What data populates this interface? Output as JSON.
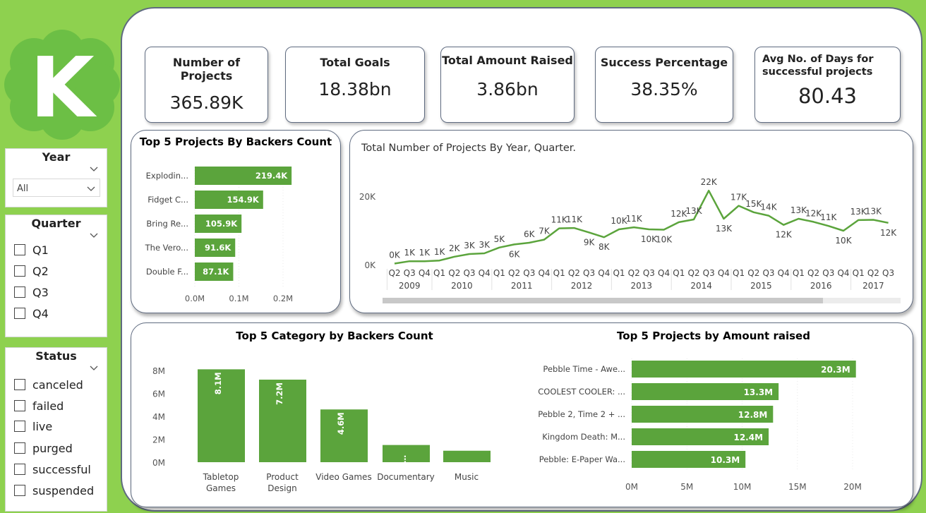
{
  "logo": {
    "letter": "K",
    "color": "#59b33a"
  },
  "filters": {
    "year": {
      "title": "Year",
      "selected": "All"
    },
    "quarter": {
      "title": "Quarter",
      "options": [
        "Q1",
        "Q2",
        "Q3",
        "Q4"
      ]
    },
    "status": {
      "title": "Status",
      "options": [
        "canceled",
        "failed",
        "live",
        "purged",
        "successful",
        "suspended"
      ]
    }
  },
  "kpis": {
    "projects": {
      "label": "Number of Projects",
      "value": "365.89K"
    },
    "goals": {
      "label": "Total Goals",
      "value": "18.38bn"
    },
    "raised": {
      "label": "Total Amount Raised",
      "value": "3.86bn"
    },
    "success": {
      "label": "Success Percentage",
      "value": "38.35%"
    },
    "days": {
      "label": "Avg No. of Days for successful projects",
      "value": "80.43"
    }
  },
  "colors": {
    "bar": "#5ba43c",
    "line": "#5ba43c"
  },
  "chart_data": [
    {
      "id": "backers_projects",
      "type": "bar",
      "orientation": "horizontal",
      "title": "Top 5 Projects By Backers Count",
      "categories": [
        "Explodin...",
        "Fidget C...",
        "Bring Re...",
        "The Vero...",
        "Double F..."
      ],
      "values": [
        219400,
        154900,
        105900,
        91600,
        87100
      ],
      "data_labels": [
        "219.4K",
        "154.9K",
        "105.9K",
        "91.6K",
        "87.1K"
      ],
      "xticks": [
        "0.0M",
        "0.1M",
        "0.2M"
      ],
      "xlim": [
        0,
        250000
      ]
    },
    {
      "id": "projects_by_quarter",
      "type": "line",
      "title": "Total Number of Projects By Year, Quarter.",
      "x": [
        "Q2",
        "Q3",
        "Q4",
        "Q1",
        "Q2",
        "Q3",
        "Q4",
        "Q1",
        "Q2",
        "Q3",
        "Q4",
        "Q1",
        "Q2",
        "Q3",
        "Q4",
        "Q1",
        "Q2",
        "Q3",
        "Q4",
        "Q1",
        "Q2",
        "Q3",
        "Q4",
        "Q1",
        "Q2",
        "Q3",
        "Q4",
        "Q1",
        "Q2",
        "Q3",
        "Q4",
        "Q1",
        "Q2",
        "Q3"
      ],
      "years": [
        "2009",
        "2010",
        "2011",
        "2012",
        "2013",
        "2014",
        "2015",
        "2016",
        "2017"
      ],
      "year_quarter_counts": [
        3,
        4,
        4,
        4,
        4,
        4,
        4,
        4,
        3
      ],
      "values": [
        300,
        1000,
        1000,
        1200,
        2300,
        3100,
        3300,
        5000,
        5900,
        6400,
        7300,
        10600,
        10700,
        9400,
        8000,
        10300,
        10900,
        10300,
        10200,
        12400,
        13200,
        21600,
        13400,
        17200,
        15300,
        14300,
        11600,
        13400,
        12500,
        11300,
        9900,
        13000,
        13100,
        12200
      ],
      "data_labels": [
        "0K",
        "1K",
        "1K",
        "1K",
        "2K",
        "3K",
        "3K",
        "5K",
        "6K",
        "6K",
        "7K",
        "11K",
        "11K",
        "9K",
        "8K",
        "10K",
        "11K",
        "10K",
        "10K",
        "12K",
        "13K",
        "22K",
        "13K",
        "17K",
        "15K",
        "14K",
        "12K",
        "13K",
        "12K",
        "11K",
        "10K",
        "13K",
        "13K",
        "12K"
      ],
      "yticks": [
        "0K",
        "20K"
      ],
      "ylim": [
        0,
        25000
      ]
    },
    {
      "id": "category_backers",
      "type": "bar",
      "orientation": "vertical",
      "title": "Top 5 Category by Backers Count",
      "categories": [
        [
          "Tabletop",
          "Games"
        ],
        [
          "Product",
          "Design"
        ],
        [
          "Video Games"
        ],
        [
          "Documentary"
        ],
        [
          "Music"
        ]
      ],
      "values": [
        8100000,
        7200000,
        4600000,
        1500000,
        1000000
      ],
      "data_labels": [
        "8.1M",
        "7.2M",
        "4.6M",
        "…",
        ""
      ],
      "yticks": [
        "0M",
        "2M",
        "4M",
        "6M",
        "8M"
      ],
      "ylim": [
        0,
        8000000
      ]
    },
    {
      "id": "amount_raised",
      "type": "bar",
      "orientation": "horizontal",
      "title": "Top 5 Projects by Amount raised",
      "categories": [
        "Pebble Time - Awe...",
        "COOLEST COOLER: ...",
        "Pebble 2, Time 2 + ...",
        "Kingdom Death: M...",
        "Pebble: E-Paper Wa..."
      ],
      "values": [
        20300000,
        13300000,
        12800000,
        12400000,
        10300000
      ],
      "data_labels": [
        "20.3M",
        "13.3M",
        "12.8M",
        "12.4M",
        "10.3M"
      ],
      "xticks": [
        "0M",
        "5M",
        "10M",
        "15M",
        "20M"
      ],
      "xlim": [
        0,
        20000000
      ]
    }
  ]
}
